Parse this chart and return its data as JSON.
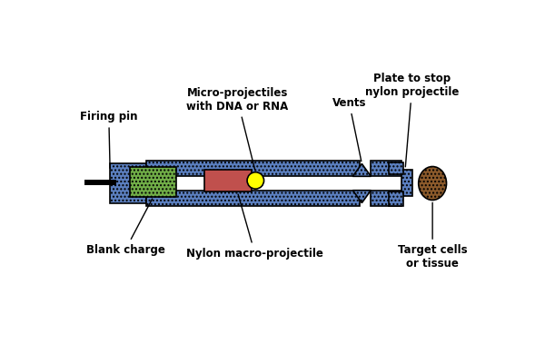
{
  "bg_color": "#ffffff",
  "blue": "#5B7FBF",
  "green": "#70AD47",
  "orange_red": "#C0504D",
  "yellow": "#FFFF00",
  "brown": "#8B5A2B",
  "black": "#000000",
  "labels": {
    "firing_pin": "Firing pin",
    "blank_charge": "Blank charge",
    "micro_projectiles": "Micro-projectiles\nwith DNA or RNA",
    "nylon_macro": "Nylon macro-projectile",
    "vents": "Vents",
    "plate": "Plate to stop\nnylon projectile",
    "target": "Target cells\nor tissue"
  },
  "figsize": [
    6.0,
    4.0
  ],
  "dpi": 100
}
